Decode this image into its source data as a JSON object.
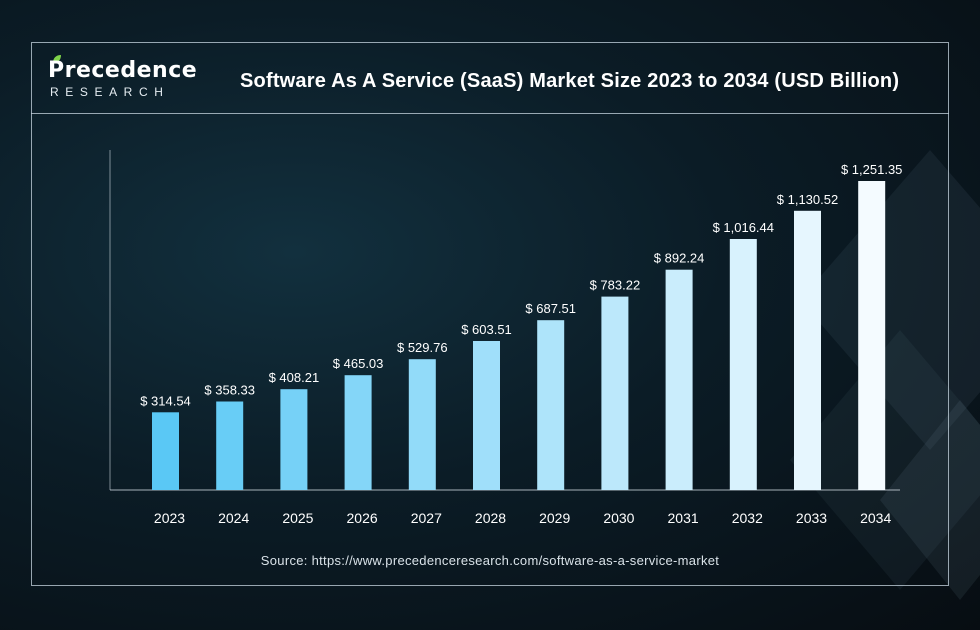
{
  "logo": {
    "name": "Precedence",
    "sub": "RESEARCH"
  },
  "source": "Source: https://www.precedenceresearch.com/software-as-a-service-market",
  "colors": {
    "bar_start": "#5ac8f5",
    "bar_end": "#f4fbff",
    "accent_green": "#7fd44a"
  },
  "chart_data": {
    "type": "bar",
    "title": "Software As A Service (SaaS) Market Size 2023 to 2034 (USD Billion)",
    "xlabel": "",
    "ylabel": "",
    "categories": [
      "2023",
      "2024",
      "2025",
      "2026",
      "2027",
      "2028",
      "2029",
      "2030",
      "2031",
      "2032",
      "2033",
      "2034"
    ],
    "values": [
      314.54,
      358.33,
      408.21,
      465.03,
      529.76,
      603.51,
      687.51,
      783.22,
      892.24,
      1016.44,
      1130.52,
      1251.35
    ],
    "value_labels": [
      "$ 314.54",
      "$ 358.33",
      "$ 408.21",
      "$ 465.03",
      "$ 529.76",
      "$ 603.51",
      "$ 687.51",
      "$ 783.22",
      "$ 892.24",
      "$ 1,016.44",
      "$ 1,130.52",
      "$ 1,251.35"
    ],
    "ylim": [
      0,
      1300
    ],
    "grid": false,
    "legend": "none"
  }
}
